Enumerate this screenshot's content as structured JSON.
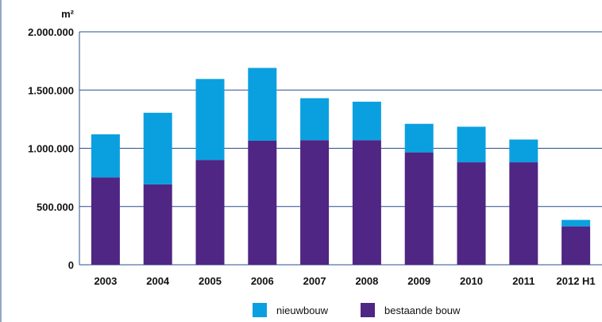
{
  "chart_data": {
    "type": "bar",
    "stacked": true,
    "unit_label": "m²",
    "categories": [
      "2003",
      "2004",
      "2005",
      "2006",
      "2007",
      "2008",
      "2009",
      "2010",
      "2011",
      "2012 H1"
    ],
    "series": [
      {
        "name": "bestaande bouw",
        "color": "#4f2683",
        "values": [
          750000,
          690000,
          900000,
          1065000,
          1070000,
          1070000,
          965000,
          880000,
          880000,
          330000
        ]
      },
      {
        "name": "nieuwbouw",
        "color": "#0aa0e0",
        "values": [
          370000,
          615000,
          695000,
          625000,
          360000,
          330000,
          245000,
          305000,
          195000,
          55000
        ]
      }
    ],
    "yticks": [
      "0",
      "500.000",
      "1.000.000",
      "1.500.000",
      "2.000.000"
    ],
    "ylim": [
      0,
      2000000
    ],
    "grid": true,
    "legend": {
      "placement": "bottom",
      "items": [
        {
          "label": "nieuwbouw",
          "color": "#0aa0e0"
        },
        {
          "label": "bestaande bouw",
          "color": "#4f2683"
        }
      ]
    }
  }
}
